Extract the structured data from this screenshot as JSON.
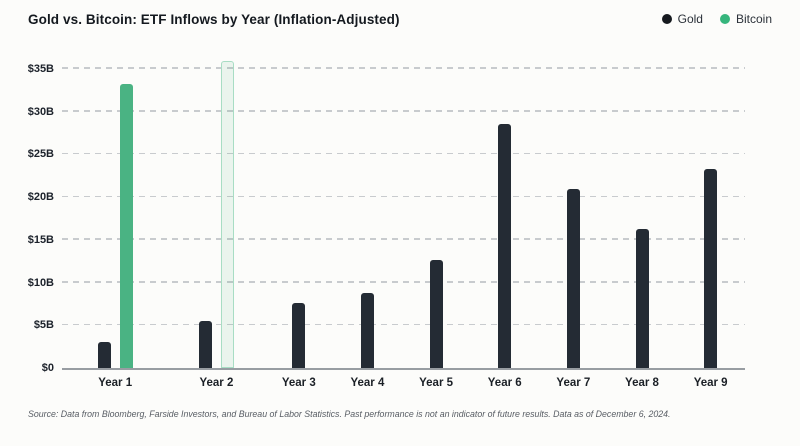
{
  "header": {
    "title": "Gold vs. Bitcoin: ETF Inflows by Year (Inflation-Adjusted)"
  },
  "legend": {
    "items": [
      {
        "label": "Gold",
        "dot_color": "#15191e"
      },
      {
        "label": "Bitcoin",
        "dot_color": "#36b57c"
      }
    ]
  },
  "chart_data": {
    "type": "bar",
    "title": "Gold vs. Bitcoin: ETF Inflows by Year (Inflation-Adjusted)",
    "categories": [
      "Year 1",
      "Year 2",
      "Year 3",
      "Year 4",
      "Year 5",
      "Year 6",
      "Year 7",
      "Year 8",
      "Year 9"
    ],
    "series": [
      {
        "name": "Gold",
        "color": "#242b34",
        "values": [
          3.0,
          5.5,
          7.6,
          8.8,
          12.6,
          28.6,
          21.0,
          16.3,
          23.3
        ]
      },
      {
        "name": "Bitcoin",
        "color": "#4ab383",
        "values": [
          33.3,
          35.9,
          null,
          null,
          null,
          null,
          null,
          null,
          null
        ],
        "variants": [
          "solid",
          "ghost",
          null,
          null,
          null,
          null,
          null,
          null,
          null
        ],
        "ghost_fill": "rgba(74,179,131,0.10)",
        "ghost_border": "#a8ddc4"
      }
    ],
    "ylabel": "",
    "xlabel": "",
    "ylim": [
      0,
      36.4
    ],
    "ytick_values": [
      0,
      5,
      10,
      15,
      20,
      25,
      30,
      35
    ],
    "ytick_labels": [
      "$0",
      "$5B",
      "$10B",
      "$15B",
      "$20B",
      "$25B",
      "$30B",
      "$35B"
    ],
    "grid": "horizontal-dashed",
    "legend_position": "top-right"
  },
  "footer": {
    "source": "Source: Data from Bloomberg, Farside Investors, and Bureau of Labor Statistics. Past performance is not an indicator of future results. Data as of December 6, 2024."
  }
}
